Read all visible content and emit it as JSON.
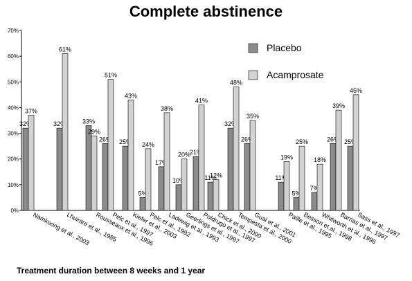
{
  "chart_data": {
    "type": "bar",
    "title": "Complete abstinence",
    "footnote": "Treatment duration between 8 weeks and 1 year",
    "ylim": [
      0,
      70
    ],
    "yticks": [
      "0%",
      "10%",
      "20%",
      "30%",
      "40%",
      "50%",
      "60%",
      "70%"
    ],
    "ytick_values": [
      0,
      10,
      20,
      30,
      40,
      50,
      60,
      70
    ],
    "grid": false,
    "legend_position": "upper-right",
    "categories": [
      "Namkoong et al., 2003",
      "Lhuintre et al., 1985",
      "Rousseaux et al., 1996",
      "Pelc et al., 1997",
      "Kiefer et al., 2003",
      "Pelc et al., 1992",
      "Ladewig et al., 1993",
      "Geerlings et al., 1997",
      "Poldrugo et al., 1997",
      "Chick et al., 2000",
      "Tempesta et al., 2000",
      "Gual et al., 2001",
      "Paille et al., 1995",
      "Besson et al., 1998",
      "Whitworth et al., 1996",
      "Barrias et al., 1997",
      "Sass et al., 1997"
    ],
    "series": [
      {
        "name": "Placebo",
        "color": "#8c8c8c",
        "values": [
          32,
          32,
          33,
          26,
          25,
          5,
          17,
          10,
          21,
          11,
          32,
          26,
          11,
          5,
          7,
          26,
          25
        ],
        "labels": [
          "32%",
          "32%",
          "33%",
          "26%",
          "25%",
          "5%",
          "17%",
          "10%",
          "21%",
          "11%",
          "32%",
          "26%",
          "11%",
          "5%",
          "7%",
          "26%",
          "25%"
        ]
      },
      {
        "name": "Acamprosate",
        "color": "#d2d2d2",
        "values": [
          37,
          61,
          29,
          51,
          43,
          24,
          38,
          20,
          41,
          12,
          48,
          35,
          19,
          25,
          18,
          39,
          45
        ],
        "labels": [
          "37%",
          "61%",
          "29%",
          "51%",
          "43%",
          "24%",
          "38%",
          "20%",
          "41%",
          "12%",
          "48%",
          "35%",
          "19%",
          "25%",
          "18%",
          "39%",
          "45%"
        ]
      }
    ]
  }
}
